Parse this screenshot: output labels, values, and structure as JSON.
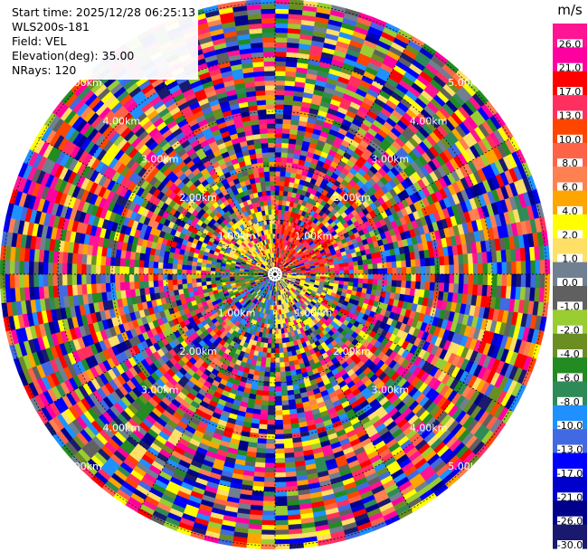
{
  "info": {
    "start_time": "Start time: 2025/12/28 06:25:13",
    "station": "WLS200s-181",
    "field": "Field: VEL",
    "elevation": "Elevation(deg): 35.00",
    "nrays": "NRays: 120"
  },
  "chart_data": {
    "type": "heatmap",
    "projection": "polar (PPI)",
    "field": "VEL",
    "units": "m/s",
    "nrays": 120,
    "range_ring_labels": [
      "1.00km",
      "2.00km",
      "3.00km",
      "4.00km",
      "5.00km"
    ],
    "colorbar": {
      "title": "m/s",
      "tick_labels": [
        "26.0",
        "21.0",
        "17.0",
        "13.0",
        "10.0",
        "8.0",
        "6.0",
        "4.0",
        "2.0",
        "1.0",
        "0.0",
        "-1.0",
        "-2.0",
        "-4.0",
        "-6.0",
        "-8.0",
        "-10.0",
        "-13.0",
        "-17.0",
        "-21.0",
        "-26.0",
        "-30.0"
      ],
      "colors": [
        "#ff1493",
        "#ff00a0",
        "#ff0000",
        "#ff3060",
        "#ff4500",
        "#ff6347",
        "#ff8050",
        "#ffa500",
        "#ffff00",
        "#ffe066",
        "#708090",
        "#606060",
        "#9acd32",
        "#6b8e23",
        "#228b22",
        "#2e8b57",
        "#1e90ff",
        "#4169e1",
        "#0000ff",
        "#0000cd",
        "#00008b",
        "#191970"
      ]
    },
    "grid": true
  }
}
